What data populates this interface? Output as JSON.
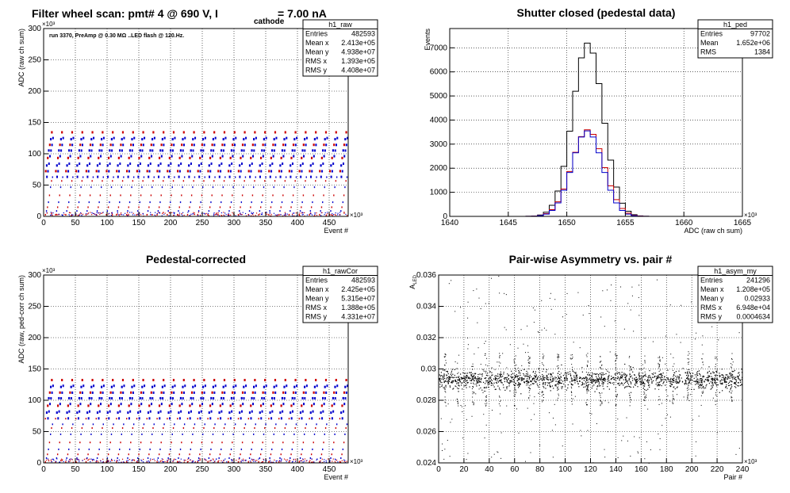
{
  "chart_data": [
    {
      "type": "scatter",
      "title": "Filter wheel scan: pmt#  4 @   690 V, I",
      "title_sub": "cathode",
      "title_tail": "= 7.00 nA",
      "annotation": "run 3370, PreAmp @ 0.30 MΩ ..LED flash @  120.Hz.",
      "xlabel": "Event #",
      "ylabel": "ADC (raw ch sum)",
      "x_exponent": "×10³",
      "y_exponent": "×10³",
      "xlim": [
        0,
        480
      ],
      "ylim": [
        0,
        300
      ],
      "x_ticks": [
        0,
        50,
        100,
        150,
        200,
        250,
        300,
        350,
        400,
        450
      ],
      "y_ticks": [
        0,
        50,
        100,
        150,
        200,
        250,
        300
      ],
      "grid": true,
      "series_colors": [
        "#cc0000",
        "#0000cc"
      ],
      "stats": {
        "name": "h1_raw",
        "rows": [
          [
            "Entries",
            "482593"
          ],
          [
            "Mean x",
            "2.413e+05"
          ],
          [
            "Mean y",
            "4.938e+07"
          ],
          [
            "RMS x",
            "1.393e+05"
          ],
          [
            "RMS y",
            "4.408e+07"
          ]
        ]
      },
      "level_values": [
        2,
        8,
        14,
        22,
        33,
        46,
        56,
        62,
        71,
        80,
        92,
        104,
        113,
        122,
        133
      ]
    },
    {
      "type": "line",
      "title": "Shutter closed (pedestal data)",
      "xlabel": "ADC (raw ch sum)",
      "ylabel": "Events",
      "x_exponent": "×10³",
      "xlim": [
        1640,
        1665
      ],
      "ylim": [
        0,
        7800
      ],
      "x_ticks": [
        1640,
        1645,
        1650,
        1655,
        1660,
        1665
      ],
      "y_ticks": [
        0,
        1000,
        2000,
        3000,
        4000,
        5000,
        6000,
        7000
      ],
      "grid": true,
      "stats": {
        "name": "h1_ped",
        "rows": [
          [
            "Entries",
            "97702"
          ],
          [
            "Mean",
            "1.652e+06"
          ],
          [
            "RMS",
            "1384"
          ]
        ]
      },
      "series": [
        {
          "color": "#000000",
          "mean": 1651.8,
          "sigma": 1.3,
          "peak": 7200
        },
        {
          "color": "#cc0000",
          "mean": 1651.8,
          "sigma": 1.35,
          "peak": 3600
        },
        {
          "color": "#0000cc",
          "mean": 1651.75,
          "sigma": 1.3,
          "peak": 3550
        }
      ]
    },
    {
      "type": "scatter",
      "title": "Pedestal-corrected",
      "xlabel": "Event #",
      "ylabel": "ADC (raw, ped-corr ch sum)",
      "x_exponent": "×10³",
      "y_exponent": "×10³",
      "xlim": [
        0,
        480
      ],
      "ylim": [
        0,
        300
      ],
      "x_ticks": [
        0,
        50,
        100,
        150,
        200,
        250,
        300,
        350,
        400,
        450
      ],
      "y_ticks": [
        0,
        50,
        100,
        150,
        200,
        250,
        300
      ],
      "grid": true,
      "series_colors": [
        "#cc0000",
        "#0000cc"
      ],
      "stats": {
        "name": "h1_rawCor",
        "rows": [
          [
            "Entries",
            "482593"
          ],
          [
            "Mean x",
            "2.425e+05"
          ],
          [
            "Mean y",
            "5.315e+07"
          ],
          [
            "RMS x",
            "1.388e+05"
          ],
          [
            "RMS y",
            "4.331e+07"
          ]
        ]
      },
      "level_values": [
        1,
        7,
        13,
        21,
        32,
        45,
        55,
        61,
        70,
        79,
        90,
        102,
        111,
        120,
        131
      ]
    },
    {
      "type": "scatter",
      "title": "Pair-wise Asymmetry vs. pair #",
      "xlabel": "Pair #",
      "ylabel": "A",
      "ylabel_sub": "LED",
      "x_exponent": "×10³",
      "xlim": [
        0,
        240
      ],
      "ylim": [
        0.024,
        0.036
      ],
      "x_ticks": [
        0,
        20,
        40,
        60,
        80,
        100,
        120,
        140,
        160,
        180,
        200,
        220,
        240
      ],
      "y_ticks": [
        0.024,
        0.026,
        0.028,
        0.03,
        0.032,
        0.034,
        0.036
      ],
      "grid": true,
      "stats": {
        "name": "h1_asym_my",
        "rows": [
          [
            "Entries",
            "241296"
          ],
          [
            "Mean x",
            "1.208e+05"
          ],
          [
            "Mean y",
            "0.02933"
          ],
          [
            "RMS x",
            "6.948e+04"
          ],
          [
            "RMS y",
            "0.0004634"
          ]
        ]
      },
      "band_center": 0.02935,
      "band_halfwidth": 0.0004,
      "spike_positions": [
        5,
        15,
        27,
        37,
        48,
        60,
        71,
        82,
        94,
        105,
        117,
        128,
        140,
        151,
        162,
        174,
        185,
        197,
        208,
        219,
        231
      ]
    }
  ]
}
